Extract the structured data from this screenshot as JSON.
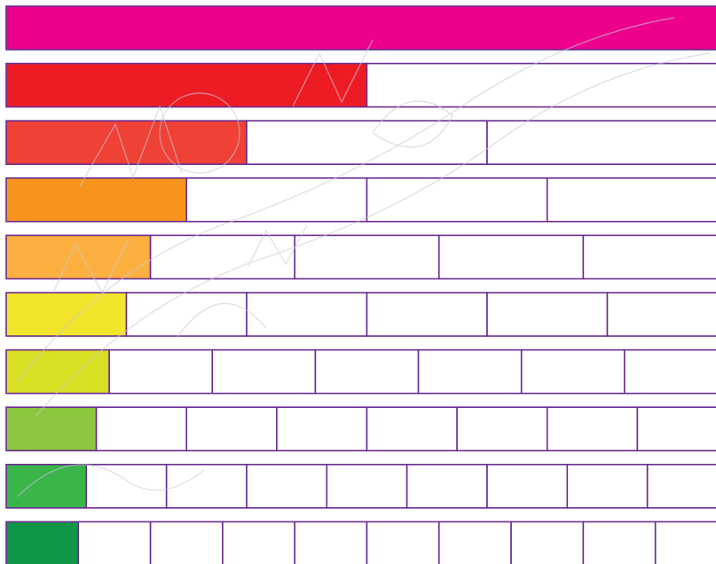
{
  "fraction_wall": {
    "rows": [
      {
        "denominator": 1,
        "color": "#EC008C"
      },
      {
        "denominator": 2,
        "color": "#ED1C24"
      },
      {
        "denominator": 3,
        "color": "#EF4136"
      },
      {
        "denominator": 4,
        "color": "#F7941D"
      },
      {
        "denominator": 5,
        "color": "#FBB040"
      },
      {
        "denominator": 6,
        "color": "#F2E52C"
      },
      {
        "denominator": 7,
        "color": "#D7DF23"
      },
      {
        "denominator": 8,
        "color": "#8DC63F"
      },
      {
        "denominator": 9,
        "color": "#39B54A"
      },
      {
        "denominator": 10,
        "color": "#0F9647"
      }
    ],
    "outline_color": "#6A2C91",
    "empty_fill": "#FFFFFF",
    "watermark_color": "#c9c9d6"
  }
}
